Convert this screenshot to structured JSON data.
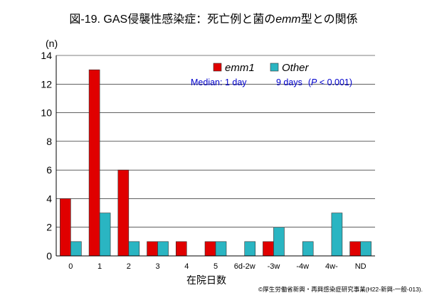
{
  "chart_data": {
    "type": "bar",
    "title_prefix": "図-19. GAS侵襲性感染症：死亡例と菌の",
    "title_italic": "emm",
    "title_suffix": "型との関係",
    "ylabel": "(n)",
    "xlabel": "在院日数",
    "ylim": [
      0,
      14
    ],
    "yticks": [
      0,
      2,
      4,
      6,
      8,
      10,
      12,
      14
    ],
    "grid": true,
    "legend_position": "top-right",
    "categories": [
      "0",
      "1",
      "2",
      "3",
      "4",
      "5",
      "6d-2w",
      "-3w",
      "-4w",
      "4w-",
      "ND"
    ],
    "series": [
      {
        "name": "emm1",
        "color": "#e00000",
        "values": [
          4,
          13,
          6,
          1,
          1,
          1,
          0,
          1,
          0,
          0,
          1
        ]
      },
      {
        "name": "Other",
        "color": "#2ab5c2",
        "values": [
          1,
          3,
          1,
          1,
          0,
          1,
          1,
          2,
          1,
          3,
          1
        ]
      }
    ],
    "annotation": {
      "median_label": "Median: 1 day",
      "other_median": "9 days",
      "p_open": "(",
      "p_symbol": "P",
      "p_rest": " < 0.001)"
    }
  },
  "footer": {
    "credit": "©厚生労働省新興・再興感染症研究事業(H22-新興-一般-013)."
  }
}
